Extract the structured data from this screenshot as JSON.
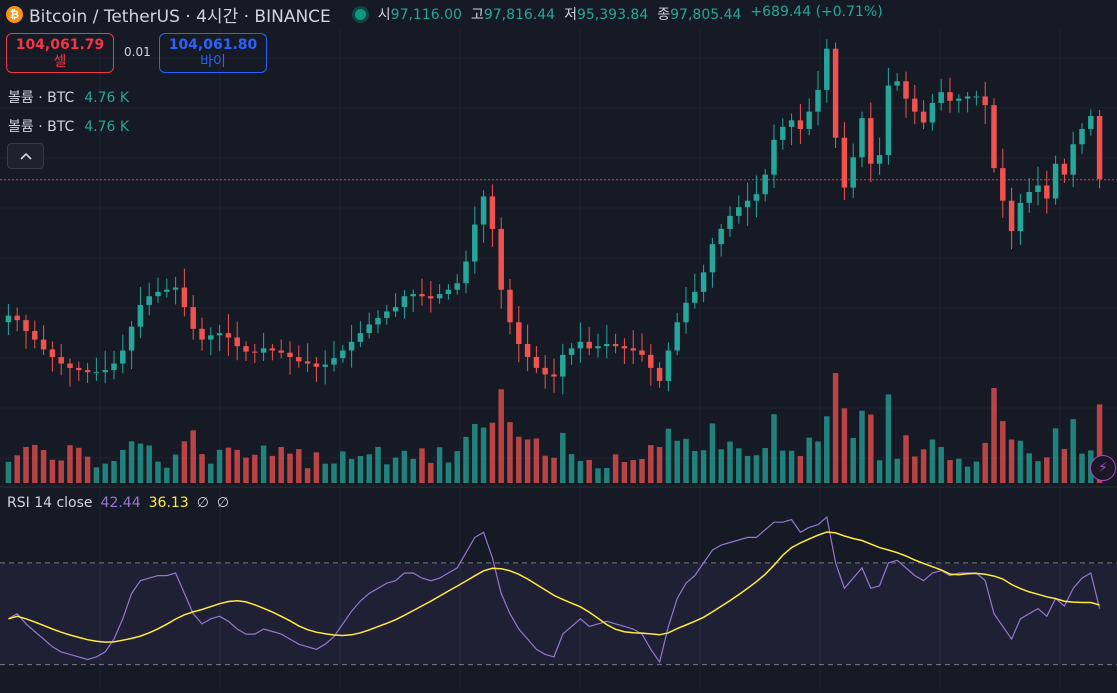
{
  "header": {
    "coin_icon": "bitcoin-icon",
    "coin_glyph": "₿",
    "title": "Bitcoin / TetherUS · 4시간 · BINANCE",
    "market_status": "market-open-dot",
    "ohlc": {
      "open_label": "시",
      "open": "97,116.00",
      "high_label": "고",
      "high": "97,816.44",
      "low_label": "저",
      "low": "95,393.84",
      "close_label": "종",
      "close": "97,805.44",
      "change": "+689.44 (+0.71%)"
    }
  },
  "trade": {
    "sell_price": "104,061.79",
    "sell_label": "셀",
    "spread": "0.01",
    "buy_price": "104,061.80",
    "buy_label": "바이"
  },
  "volume_legend": [
    {
      "label": "볼륨 · BTC",
      "value": "4.76 K"
    },
    {
      "label": "볼륨 · BTC",
      "value": "4.76 K"
    }
  ],
  "rsi": {
    "label": "RSI 14 close",
    "value": "42.44",
    "ma": "36.13",
    "v3": "∅",
    "v4": "∅"
  },
  "colors": {
    "up": "#26a69a",
    "down": "#ef5350",
    "bg": "#161a25",
    "rsi": "#9575cd",
    "rsi_ma": "#ffeb3b"
  },
  "chart_data": {
    "type": "candlestick",
    "series": [
      {
        "name": "price_close",
        "values": [
          97805,
          97600,
          97100,
          96700,
          96250,
          95900,
          95600,
          95400,
          95300,
          95200,
          95200,
          95300,
          95600,
          96200,
          97300,
          98300,
          98700,
          98900,
          99000,
          99100,
          98200,
          97200,
          96700,
          96900,
          97000,
          96800,
          96400,
          96150,
          96100,
          96300,
          96200,
          96100,
          95900,
          95700,
          95600,
          95450,
          95550,
          95850,
          96200,
          96600,
          97000,
          97400,
          97700,
          98000,
          98200,
          98700,
          98800,
          98700,
          98600,
          98800,
          99000,
          99300,
          100300,
          102000,
          103300,
          101800,
          99000,
          97500,
          96500,
          95900,
          95400,
          95100,
          95000,
          96000,
          96300,
          96600,
          96300,
          96400,
          96500,
          96400,
          96300,
          96200,
          96000,
          95400,
          94800,
          96200,
          97500,
          98400,
          98900,
          99800,
          101100,
          101800,
          102400,
          102800,
          103100,
          103400,
          104300,
          105900,
          106500,
          106800,
          106400,
          107200,
          108200,
          110100,
          106000,
          103700,
          105100,
          106900,
          104800,
          105200,
          108400,
          108600,
          107800,
          107200,
          106700,
          107600,
          108100,
          107700,
          107800,
          107900,
          107900,
          107500,
          104600,
          103100,
          101700,
          103000,
          103500,
          103800,
          103200,
          104800,
          104300,
          105700,
          106400,
          107000,
          104100
        ]
      },
      {
        "name": "rsi",
        "values": [
          48,
          50,
          46,
          43,
          40,
          37,
          35,
          34,
          33,
          32,
          33,
          35,
          40,
          48,
          58,
          63,
          64,
          65,
          65,
          66,
          58,
          50,
          46,
          48,
          49,
          47,
          44,
          42,
          42,
          44,
          43,
          42,
          40,
          38,
          37,
          36,
          38,
          41,
          46,
          51,
          55,
          58,
          60,
          62,
          63,
          66,
          66,
          64,
          63,
          64,
          66,
          68,
          74,
          80,
          82,
          72,
          58,
          50,
          44,
          40,
          36,
          34,
          33,
          42,
          45,
          48,
          45,
          46,
          47,
          46,
          45,
          44,
          42,
          36,
          31,
          45,
          56,
          62,
          65,
          70,
          75,
          77,
          78,
          79,
          80,
          80,
          83,
          86,
          86,
          87,
          82,
          84,
          85,
          88,
          70,
          60,
          64,
          68,
          60,
          61,
          70,
          71,
          68,
          65,
          63,
          66,
          67,
          65,
          66,
          66,
          66,
          63,
          50,
          45,
          40,
          48,
          50,
          52,
          49,
          56,
          53,
          60,
          64,
          66,
          52
        ]
      }
    ],
    "price_range": [
      93000,
      110500
    ],
    "rsi_range": [
      20,
      90
    ],
    "rsi_bands": [
      70,
      30
    ],
    "current_price": 104061.8
  }
}
